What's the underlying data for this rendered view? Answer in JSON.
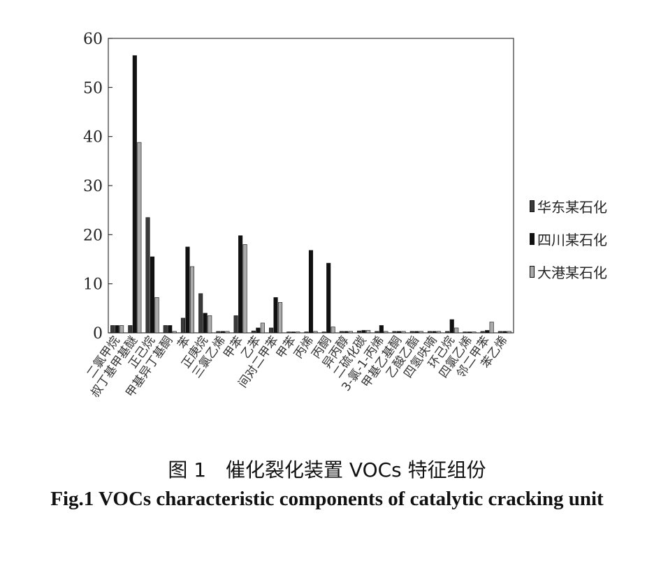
{
  "chart_data": {
    "type": "bar",
    "title": "",
    "xlabel": "",
    "ylabel": "",
    "ylim": [
      0,
      60
    ],
    "yticks": [
      0,
      10,
      20,
      30,
      40,
      50,
      60
    ],
    "grid": false,
    "legend_position": "right",
    "categories": [
      "二氯甲烷",
      "叔丁基甲基醚",
      "正己烷",
      "甲基异丁基酮",
      "苯",
      "正庚烷",
      "三氯乙烯",
      "甲苯",
      "乙苯",
      "间对二甲苯",
      "甲苯",
      "丙烯",
      "丙酮",
      "异丙醇",
      "二硫化碳",
      "3-氯-1-丙烯",
      "甲基乙基酮",
      "乙酸乙酯",
      "四氢呋喃",
      "环己烷",
      "四氯乙烯",
      "邻二甲苯",
      "苯乙烯"
    ],
    "series": [
      {
        "name": "华东某石化",
        "color": "#3a3a3a",
        "values": [
          1.5,
          1.5,
          23.5,
          1.5,
          3.0,
          8.0,
          0.3,
          3.5,
          0.4,
          1.0,
          0.2,
          0.2,
          0.2,
          0.3,
          0.4,
          0.3,
          0.3,
          0.3,
          0.3,
          0.3,
          0.2,
          0.3,
          0.3
        ]
      },
      {
        "name": "四川某石化",
        "color": "#111111",
        "values": [
          1.5,
          56.5,
          15.5,
          1.5,
          17.5,
          4.0,
          0.3,
          19.8,
          1.0,
          7.2,
          0.2,
          16.8,
          14.2,
          0.3,
          0.5,
          1.5,
          0.3,
          0.3,
          0.3,
          2.7,
          0.2,
          0.5,
          0.3
        ]
      },
      {
        "name": "大港某石化",
        "color": "#aaaaaa",
        "values": [
          1.5,
          38.8,
          7.2,
          0.3,
          13.5,
          3.5,
          0.3,
          18.0,
          2.0,
          6.2,
          0.2,
          0.3,
          1.2,
          0.3,
          0.5,
          0.3,
          0.3,
          0.3,
          0.3,
          1.0,
          0.2,
          2.2,
          0.3
        ]
      }
    ]
  },
  "caption": {
    "cn": "图 1　催化裂化装置 VOCs 特征组份",
    "en": "Fig.1 VOCs characteristic components of catalytic cracking unit"
  }
}
